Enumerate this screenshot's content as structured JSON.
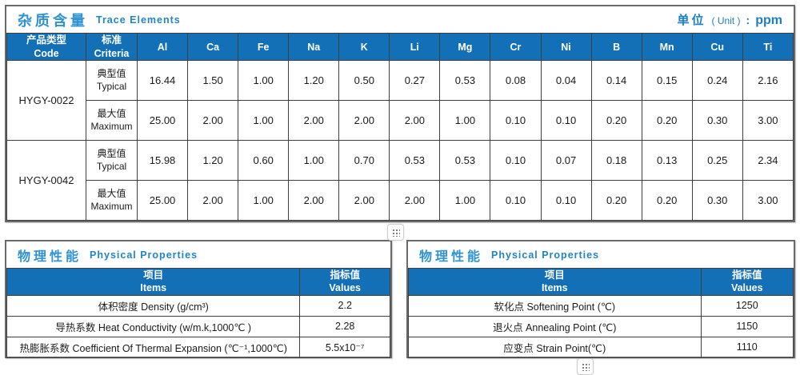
{
  "colors": {
    "header_bg": "#1370b7",
    "title_blue_zh": "#2e93d2",
    "title_blue_en": "#1f85c7",
    "unit_blue": "#1c7fc6",
    "cell_border": "#3f3f3f",
    "section_border": "#6a6a6a"
  },
  "trace": {
    "title_zh": "杂质含量",
    "title_en": "Trace Elements",
    "unit_zh": "单位",
    "unit_paren": "( Unit )",
    "unit_colon": ":",
    "unit_value": "ppm",
    "col_code_zh": "产品类型",
    "col_code_en": "Code",
    "col_criteria_zh": "标准",
    "col_criteria_en": "Criteria",
    "elements": [
      "Al",
      "Ca",
      "Fe",
      "Na",
      "K",
      "Li",
      "Mg",
      "Cr",
      "Ni",
      "B",
      "Mn",
      "Cu",
      "Ti"
    ],
    "rows": [
      {
        "code": "HYGY-0022",
        "typical": {
          "zh": "典型值",
          "en": "Typical",
          "values": [
            "16.44",
            "1.50",
            "1.00",
            "1.20",
            "0.50",
            "0.27",
            "0.53",
            "0.08",
            "0.04",
            "0.14",
            "0.15",
            "0.24",
            "2.16"
          ]
        },
        "maximum": {
          "zh": "最大值",
          "en": "Maximum",
          "values": [
            "25.00",
            "2.00",
            "1.00",
            "2.00",
            "2.00",
            "2.00",
            "1.00",
            "0.10",
            "0.10",
            "0.20",
            "0.20",
            "0.30",
            "3.00"
          ]
        }
      },
      {
        "code": "HYGY-0042",
        "typical": {
          "zh": "典型值",
          "en": "Typical",
          "values": [
            "15.98",
            "1.20",
            "0.60",
            "1.00",
            "0.70",
            "0.53",
            "0.53",
            "0.10",
            "0.07",
            "0.18",
            "0.13",
            "0.25",
            "2.34"
          ]
        },
        "maximum": {
          "zh": "最大值",
          "en": "Maximum",
          "values": [
            "25.00",
            "2.00",
            "1.00",
            "2.00",
            "2.00",
            "2.00",
            "1.00",
            "0.10",
            "0.10",
            "0.20",
            "0.20",
            "0.30",
            "3.00"
          ]
        }
      }
    ]
  },
  "phys_left": {
    "title_zh": "物理性能",
    "title_en": "Physical Properties",
    "col_items_zh": "项目",
    "col_items_en": "Items",
    "col_values_zh": "指标值",
    "col_values_en": "Values",
    "rows": [
      {
        "item": "体积密度 Density (g/cm³)",
        "value": "2.2"
      },
      {
        "item": "导热系数 Heat Conductivity (w/m.k,1000℃ )",
        "value": "2.28"
      },
      {
        "item": "热膨胀系数 Coefficient Of Thermal Expansion (℃⁻¹,1000℃)",
        "value": "5.5x10⁻⁷"
      }
    ]
  },
  "phys_right": {
    "title_zh": "物理性能",
    "title_en": "Physical Properties",
    "col_items_zh": "项目",
    "col_items_en": "Items",
    "col_values_zh": "指标值",
    "col_values_en": "Values",
    "rows": [
      {
        "item": "软化点 Softening Point (℃)",
        "value": "1250"
      },
      {
        "item": "退火点 Annealing Point (℃)",
        "value": "1150"
      },
      {
        "item": "应变点 Strain Point(℃)",
        "value": "1110"
      }
    ]
  }
}
